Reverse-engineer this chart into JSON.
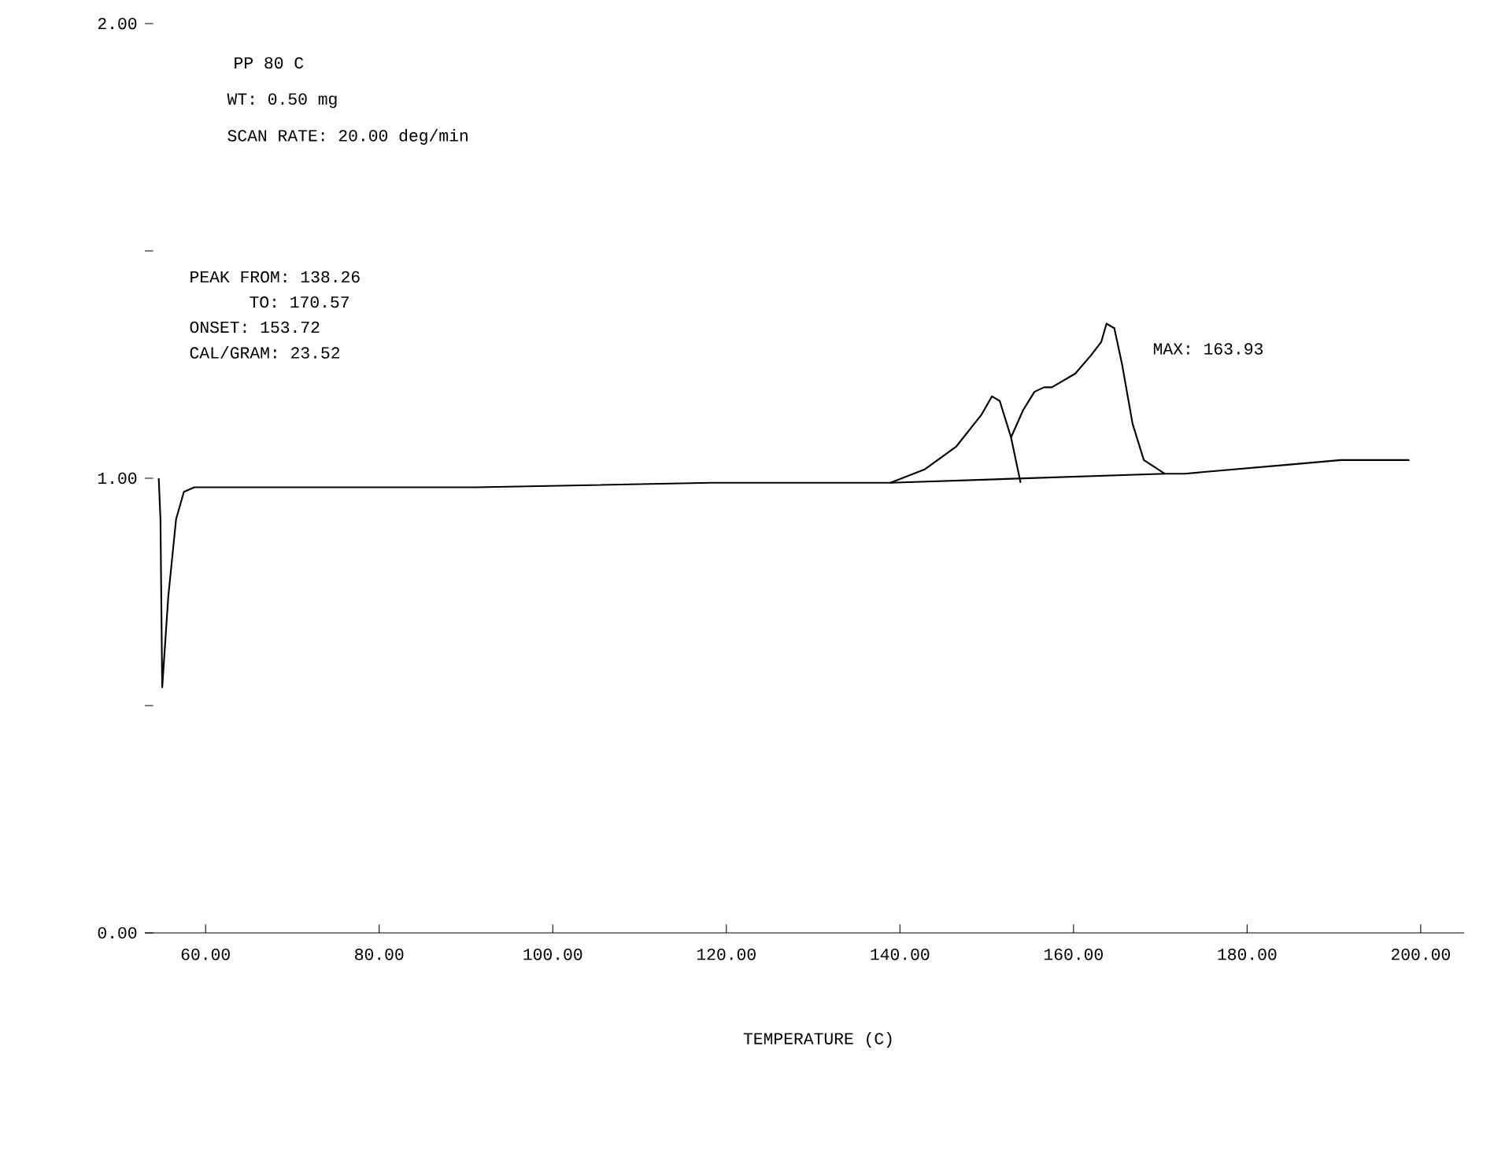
{
  "chart_data": {
    "type": "line",
    "xlabel": "TEMPERATURE (C)",
    "annotations": [
      "PP 80 C",
      "WT:  0.50 mg",
      "SCAN RATE:   20.00 deg/min",
      "PEAK FROM: 138.26",
      "TO: 170.57",
      "ONSET: 153.72",
      "CAL/GRAM: 23.52",
      {
        "text": "MAX: 163.93",
        "x": 163.93,
        "y": 1.34
      }
    ],
    "xlim": [
      53,
      205
    ],
    "ylim": [
      0,
      2
    ],
    "xticks": [
      {
        "value": 60,
        "label": "60.00"
      },
      {
        "value": 80,
        "label": "80.00"
      },
      {
        "value": 100,
        "label": "100.00"
      },
      {
        "value": 120,
        "label": "120.00"
      },
      {
        "value": 140,
        "label": "140.00"
      },
      {
        "value": 160,
        "label": "160.00"
      },
      {
        "value": 180,
        "label": "180.00"
      },
      {
        "value": 200,
        "label": "200.00"
      }
    ],
    "yticks": [
      {
        "value": 0,
        "label": "0.00"
      },
      {
        "value": 0.5,
        "label": null
      },
      {
        "value": 1,
        "label": "1.00"
      },
      {
        "value": 1.5,
        "label": null
      },
      {
        "value": 2,
        "label": "2.00"
      }
    ],
    "grid": false,
    "marker": "none",
    "series": [
      {
        "color": "#000000",
        "x": [
          54.6,
          54.8,
          55.0,
          55.7,
          56.6,
          57.5,
          58.7,
          70.5,
          91.2,
          118.2,
          130.8,
          138.9,
          142.9,
          146.5,
          149.4,
          150.6,
          151.5,
          152.8,
          154.2,
          155.5,
          156.6,
          157.5,
          160.2,
          162.0,
          163.2,
          163.8,
          164.7,
          165.6,
          166.8,
          168.1,
          170.5,
          172.8,
          184.9,
          190.8,
          198.7
        ],
        "values": [
          1.0,
          0.91,
          0.54,
          0.74,
          0.91,
          0.97,
          0.98,
          0.98,
          0.98,
          0.99,
          0.99,
          0.99,
          1.02,
          1.07,
          1.14,
          1.18,
          1.17,
          1.09,
          1.15,
          1.19,
          1.2,
          1.2,
          1.23,
          1.27,
          1.3,
          1.34,
          1.33,
          1.25,
          1.12,
          1.04,
          1.01,
          1.01,
          1.03,
          1.04,
          1.04
        ]
      },
      {
        "color": "#000000",
        "x": [
          138.9,
          170.5
        ],
        "values": [
          0.99,
          1.01
        ]
      },
      {
        "color": "#000000",
        "x": [
          152.8,
          153.9
        ],
        "values": [
          1.09,
          0.99
        ]
      }
    ]
  }
}
